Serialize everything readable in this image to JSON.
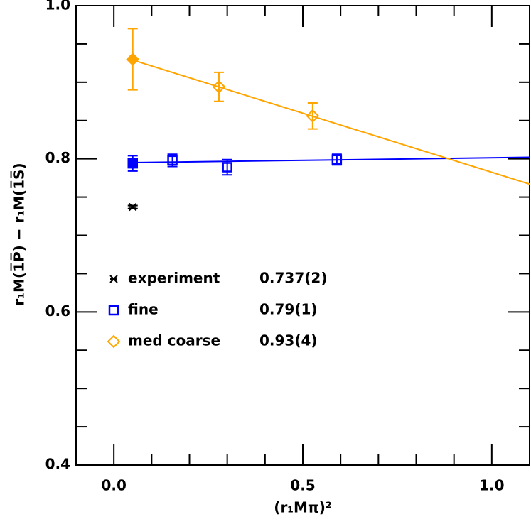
{
  "chart_data": {
    "type": "scatter",
    "xlabel": "(r₁Mπ)²",
    "ylabel": "r₁M(1̅P̅) − r₁M(1̅S̅)",
    "xlim": [
      -0.1,
      1.1
    ],
    "ylim": [
      0.4,
      1.0
    ],
    "xticks": [
      {
        "value": 0,
        "label": "0.0"
      },
      0.5,
      {
        "value": 1,
        "label": "1.0"
      }
    ],
    "yticks": [
      0.4,
      0.6,
      0.8,
      {
        "value": 1,
        "label": "1.0"
      }
    ],
    "xminorticks": [
      0.1,
      0.2,
      0.3,
      0.4,
      0.6,
      0.7,
      0.8,
      0.9
    ],
    "yminorticks": [
      0.45,
      0.5,
      0.55,
      0.65,
      0.7,
      0.75,
      0.85,
      0.9,
      0.95
    ],
    "series": [
      {
        "name": "experiment",
        "result": "0.737(2)",
        "color": "#000000",
        "marker": "cross",
        "x": [
          0.05
        ],
        "values": [
          0.737
        ],
        "errors": [
          0.002
        ],
        "filled": [
          false
        ]
      },
      {
        "name": "fine",
        "result": "0.79(1)",
        "color": "#0000ff",
        "marker": "square",
        "x": [
          0.05,
          0.155,
          0.3,
          0.59
        ],
        "values": [
          0.794,
          0.798,
          0.789,
          0.799
        ],
        "errors": [
          0.01,
          0.008,
          0.01,
          0.007
        ],
        "filled": [
          true,
          false,
          false,
          false
        ]
      },
      {
        "name": "med coarse",
        "result": "0.93(4)",
        "color": "#ffa500",
        "marker": "diamond",
        "x": [
          0.05,
          0.278,
          0.526
        ],
        "values": [
          0.93,
          0.894,
          0.856
        ],
        "errors": [
          0.04,
          0.019,
          0.017
        ],
        "filled": [
          true,
          false,
          false
        ]
      }
    ],
    "fits": [
      {
        "color": "#0000ff",
        "x": [
          0.05,
          1.1
        ],
        "values": [
          0.795,
          0.802
        ]
      },
      {
        "color": "#ffa500",
        "x": [
          0.05,
          1.1
        ],
        "values": [
          0.929,
          0.767
        ]
      }
    ]
  }
}
